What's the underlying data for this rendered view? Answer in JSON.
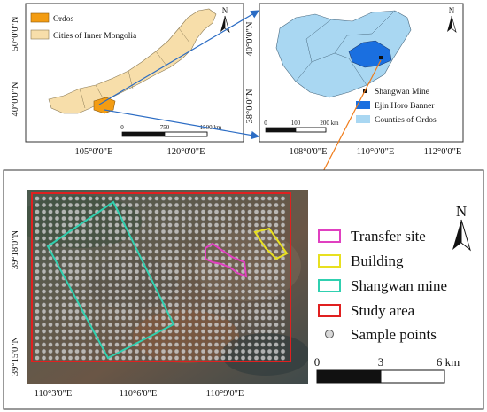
{
  "map1": {
    "legend": {
      "ordos": "Ordos",
      "cities": "Cities of Inner Mongolia"
    },
    "lat_ticks": [
      "50°0'0\"N",
      "40°0'0\"N"
    ],
    "lon_ticks": [
      "105°0'0\"E",
      "120°0'0\"E"
    ],
    "scale": [
      "0",
      "750",
      "1500 km"
    ],
    "north": "N",
    "colors": {
      "ordos": "#f39c12",
      "cities": "#f7deaa"
    }
  },
  "map2": {
    "legend": {
      "mine": "Shangwan Mine",
      "banner": "Ejin Horo Banner",
      "counties": "Counties of Ordos"
    },
    "lat_ticks": [
      "40°0'0\"N",
      "38°0'0\"N"
    ],
    "lon_ticks": [
      "108°0'0\"E",
      "110°0'0\"E",
      "112°0'0\"E"
    ],
    "scale": [
      "0",
      "100",
      "200 km"
    ],
    "north": "N",
    "colors": {
      "banner": "#1a6fe0",
      "counties": "#a9d7f2"
    }
  },
  "map3": {
    "legend": {
      "transfer": "Transfer site",
      "building": "Building",
      "mine": "Shangwan mine",
      "study": "Study area",
      "samples": "Sample points"
    },
    "lat_ticks": [
      "39°18'0\"N",
      "39°15'0\"N"
    ],
    "lon_ticks": [
      "110°3'0\"E",
      "110°6'0\"E",
      "110°9'0\"E"
    ],
    "scale": [
      "0",
      "3",
      "6 km"
    ],
    "north": "N",
    "colors": {
      "transfer": "#e040c0",
      "building": "#e8e020",
      "mine": "#30d0b0",
      "study": "#e02020",
      "samples": "#d8d8d8"
    }
  }
}
